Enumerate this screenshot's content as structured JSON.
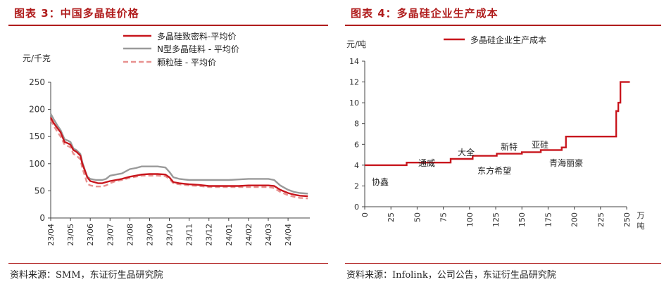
{
  "left": {
    "title": "图表 3：中国多晶硅价格",
    "source": "资料来源：SMM，东证衍生品研究院"
  },
  "right": {
    "title": "图表 4：多晶硅企业生产成本",
    "source": "资料来源：Infolink，公司公告，东证衍生品研究院"
  },
  "chart_data": [
    {
      "type": "line",
      "title": "",
      "ylabel": "元/千克",
      "xlabel": "",
      "ylim": [
        0,
        250
      ],
      "yticks": [
        0,
        50,
        100,
        150,
        200,
        250
      ],
      "xlim": [
        0,
        13.1
      ],
      "xticks": [
        {
          "label": "23/04",
          "x": 0
        },
        {
          "label": "23/05",
          "x": 1
        },
        {
          "label": "23/06",
          "x": 2
        },
        {
          "label": "23/07",
          "x": 3
        },
        {
          "label": "23/08",
          "x": 4
        },
        {
          "label": "23/09",
          "x": 5
        },
        {
          "label": "23/10",
          "x": 6
        },
        {
          "label": "23/11",
          "x": 7
        },
        {
          "label": "23/12",
          "x": 8
        },
        {
          "label": "24/01",
          "x": 9
        },
        {
          "label": "24/02",
          "x": 10
        },
        {
          "label": "24/03",
          "x": 11
        },
        {
          "label": "24/04",
          "x": 12
        }
      ],
      "grid": false,
      "legend": "top",
      "series": [
        {
          "name": "多晶硅致密料-平均价",
          "color": "#c8161d",
          "style": "solid",
          "points": [
            [
              0,
              185
            ],
            [
              0.15,
              175
            ],
            [
              0.35,
              165
            ],
            [
              0.5,
              158
            ],
            [
              0.7,
              140
            ],
            [
              0.9,
              137
            ],
            [
              1.0,
              135
            ],
            [
              1.15,
              125
            ],
            [
              1.3,
              122
            ],
            [
              1.5,
              115
            ],
            [
              1.6,
              100
            ],
            [
              1.75,
              85
            ],
            [
              1.85,
              75
            ],
            [
              2.0,
              68
            ],
            [
              2.2,
              66
            ],
            [
              2.4,
              64
            ],
            [
              2.6,
              64
            ],
            [
              2.8,
              66
            ],
            [
              3.0,
              68
            ],
            [
              3.3,
              70
            ],
            [
              3.6,
              72
            ],
            [
              4.0,
              76
            ],
            [
              4.3,
              78
            ],
            [
              4.6,
              80
            ],
            [
              5.0,
              81
            ],
            [
              5.4,
              81
            ],
            [
              5.8,
              80
            ],
            [
              6.0,
              75
            ],
            [
              6.2,
              66
            ],
            [
              6.5,
              64
            ],
            [
              7.0,
              62
            ],
            [
              7.5,
              61
            ],
            [
              8.0,
              59
            ],
            [
              8.5,
              59
            ],
            [
              9.0,
              59
            ],
            [
              9.5,
              59
            ],
            [
              10.0,
              60
            ],
            [
              10.5,
              60
            ],
            [
              11.0,
              60
            ],
            [
              11.3,
              59
            ],
            [
              11.6,
              52
            ],
            [
              12.0,
              46
            ],
            [
              12.3,
              43
            ],
            [
              12.6,
              41
            ],
            [
              13.0,
              40
            ]
          ]
        },
        {
          "name": "N型多晶硅料 - 平均价",
          "color": "#9a9a9a",
          "style": "solid",
          "points": [
            [
              0,
              192
            ],
            [
              0.15,
              182
            ],
            [
              0.35,
              170
            ],
            [
              0.5,
              162
            ],
            [
              0.7,
              145
            ],
            [
              0.9,
              142
            ],
            [
              1.0,
              140
            ],
            [
              1.15,
              128
            ],
            [
              1.3,
              125
            ],
            [
              1.5,
              118
            ],
            [
              1.6,
              103
            ],
            [
              1.75,
              86
            ],
            [
              1.85,
              76
            ],
            [
              2.0,
              72
            ],
            [
              2.3,
              70
            ],
            [
              2.6,
              70
            ],
            [
              2.8,
              72
            ],
            [
              3.0,
              78
            ],
            [
              3.3,
              80
            ],
            [
              3.6,
              82
            ],
            [
              4.0,
              90
            ],
            [
              4.3,
              92
            ],
            [
              4.6,
              95
            ],
            [
              5.0,
              95
            ],
            [
              5.4,
              95
            ],
            [
              5.8,
              93
            ],
            [
              6.0,
              85
            ],
            [
              6.2,
              75
            ],
            [
              6.5,
              72
            ],
            [
              7.0,
              70
            ],
            [
              7.5,
              70
            ],
            [
              8.0,
              70
            ],
            [
              8.5,
              70
            ],
            [
              9.0,
              70
            ],
            [
              9.5,
              71
            ],
            [
              10.0,
              72
            ],
            [
              10.5,
              72
            ],
            [
              11.0,
              72
            ],
            [
              11.3,
              70
            ],
            [
              11.6,
              60
            ],
            [
              12.0,
              52
            ],
            [
              12.3,
              48
            ],
            [
              12.6,
              46
            ],
            [
              13.0,
              45
            ]
          ]
        },
        {
          "name": "颗粒硅 - 平均价",
          "color": "#e8918f",
          "style": "dashed",
          "points": [
            [
              0,
              180
            ],
            [
              0.15,
              170
            ],
            [
              0.35,
              158
            ],
            [
              0.5,
              150
            ],
            [
              0.7,
              135
            ],
            [
              0.9,
              132
            ],
            [
              1.0,
              130
            ],
            [
              1.15,
              118
            ],
            [
              1.3,
              115
            ],
            [
              1.5,
              108
            ],
            [
              1.6,
              92
            ],
            [
              1.75,
              75
            ],
            [
              1.85,
              63
            ],
            [
              2.0,
              60
            ],
            [
              2.3,
              58
            ],
            [
              2.6,
              58
            ],
            [
              2.8,
              60
            ],
            [
              3.0,
              64
            ],
            [
              3.3,
              68
            ],
            [
              3.6,
              70
            ],
            [
              4.0,
              74
            ],
            [
              4.3,
              76
            ],
            [
              4.6,
              78
            ],
            [
              5.0,
              78
            ],
            [
              5.4,
              78
            ],
            [
              5.8,
              77
            ],
            [
              6.0,
              72
            ],
            [
              6.2,
              64
            ],
            [
              6.5,
              62
            ],
            [
              7.0,
              60
            ],
            [
              7.5,
              59
            ],
            [
              8.0,
              57
            ],
            [
              8.5,
              57
            ],
            [
              9.0,
              57
            ],
            [
              9.5,
              57
            ],
            [
              10.0,
              57
            ],
            [
              10.5,
              57
            ],
            [
              11.0,
              57
            ],
            [
              11.3,
              55
            ],
            [
              11.6,
              48
            ],
            [
              12.0,
              42
            ],
            [
              12.3,
              39
            ],
            [
              12.6,
              37
            ],
            [
              13.0,
              36
            ]
          ]
        }
      ]
    },
    {
      "type": "line",
      "title": "",
      "ylabel": "元/吨",
      "xlabel": "万吨",
      "ylim": [
        0,
        14
      ],
      "yticks": [
        0,
        2,
        4,
        6,
        8,
        10,
        12,
        14
      ],
      "xlim": [
        0,
        250
      ],
      "xticks": [
        0,
        25,
        50,
        75,
        100,
        125,
        150,
        175,
        200,
        225,
        250
      ],
      "grid": false,
      "legend": "top-left",
      "series": [
        {
          "name": "多晶硅企业生产成本",
          "color": "#c8161d",
          "points": [
            [
              0,
              4.0
            ],
            [
              40,
              4.0
            ],
            [
              40,
              4.25
            ],
            [
              82,
              4.25
            ],
            [
              82,
              4.6
            ],
            [
              103,
              4.6
            ],
            [
              103,
              4.9
            ],
            [
              126,
              4.9
            ],
            [
              126,
              5.1
            ],
            [
              150,
              5.1
            ],
            [
              150,
              5.25
            ],
            [
              168,
              5.25
            ],
            [
              168,
              5.45
            ],
            [
              188,
              5.45
            ],
            [
              188,
              5.7
            ],
            [
              192,
              5.7
            ],
            [
              192,
              6.75
            ],
            [
              240,
              6.75
            ],
            [
              240,
              9.2
            ],
            [
              242,
              9.2
            ],
            [
              242,
              10.0
            ],
            [
              244,
              10.0
            ],
            [
              244,
              12.0
            ],
            [
              253,
              12.0
            ]
          ]
        }
      ],
      "annotations": [
        {
          "text": "协鑫",
          "x": 18,
          "y": 3.2
        },
        {
          "text": "通威",
          "x": 72,
          "y": 4.5
        },
        {
          "text": "东方希望",
          "x": 142,
          "y": 3.95
        },
        {
          "text": "大全",
          "x": 158,
          "y": 4.85
        },
        {
          "text": "新特",
          "x": 211,
          "y": 5.8
        },
        {
          "text": "青海丽豪",
          "x": 292,
          "y": 4.75
        },
        {
          "text": "亚硅",
          "x": 292,
          "y": 5.9
        }
      ]
    }
  ]
}
